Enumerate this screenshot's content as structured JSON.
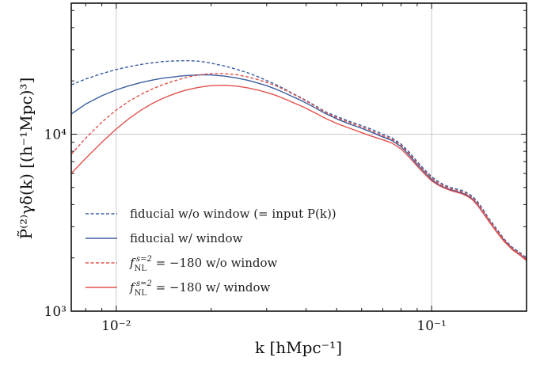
{
  "chart_data": {
    "type": "line",
    "xscale": "log",
    "yscale": "log",
    "xlim": [
      0.0072,
      0.2
    ],
    "ylim": [
      1000,
      55000
    ],
    "grid": true,
    "legend_position": "lower-left",
    "xlabel": "k [hMpc⁻¹]",
    "ylabel": "P̃⁽²⁾γδ(k) [(h⁻¹Mpc)³]",
    "x_ticks": [
      {
        "value": 0.01,
        "label": "10⁻²"
      },
      {
        "value": 0.1,
        "label": "10⁻¹"
      }
    ],
    "y_ticks": [
      {
        "value": 1000,
        "label": "10³"
      },
      {
        "value": 10000,
        "label": "10⁴"
      }
    ],
    "colors": {
      "blue": "#3b5fa0",
      "red": "#e0524d"
    },
    "series": [
      {
        "name": "fiducial w/o window (= input P(k))",
        "color": "#3b5fa0",
        "dash": true,
        "x": [
          0.0072,
          0.008,
          0.009,
          0.01,
          0.011,
          0.012,
          0.013,
          0.014,
          0.015,
          0.016,
          0.017,
          0.018,
          0.019,
          0.02,
          0.022,
          0.024,
          0.026,
          0.028,
          0.03,
          0.032,
          0.034,
          0.036,
          0.038,
          0.04,
          0.043,
          0.046,
          0.05,
          0.055,
          0.06,
          0.065,
          0.07,
          0.075,
          0.08,
          0.085,
          0.09,
          0.095,
          0.1,
          0.105,
          0.11,
          0.115,
          0.12,
          0.125,
          0.13,
          0.135,
          0.14,
          0.145,
          0.15,
          0.16,
          0.17,
          0.18,
          0.19,
          0.2
        ],
        "y": [
          19000,
          20500,
          22000,
          23200,
          24100,
          24800,
          25300,
          25700,
          25900,
          26000,
          26000,
          25900,
          25600,
          25200,
          24300,
          23300,
          22300,
          21200,
          20100,
          19100,
          18100,
          17100,
          16300,
          15500,
          14400,
          13400,
          12600,
          11800,
          11200,
          10600,
          10000,
          9500,
          8800,
          7900,
          7000,
          6300,
          5750,
          5400,
          5150,
          5000,
          4900,
          4800,
          4650,
          4450,
          4150,
          3800,
          3450,
          2950,
          2550,
          2300,
          2150,
          2000
        ]
      },
      {
        "name": "fiducial w/ window",
        "color": "#3b5fa0",
        "dash": false,
        "x": [
          0.0072,
          0.008,
          0.009,
          0.01,
          0.011,
          0.012,
          0.013,
          0.014,
          0.015,
          0.016,
          0.017,
          0.018,
          0.019,
          0.02,
          0.022,
          0.024,
          0.026,
          0.028,
          0.03,
          0.032,
          0.034,
          0.036,
          0.038,
          0.04,
          0.043,
          0.046,
          0.05,
          0.055,
          0.06,
          0.065,
          0.07,
          0.075,
          0.08,
          0.085,
          0.09,
          0.095,
          0.1,
          0.105,
          0.11,
          0.115,
          0.12,
          0.125,
          0.13,
          0.135,
          0.14,
          0.145,
          0.15,
          0.16,
          0.17,
          0.18,
          0.19,
          0.2
        ],
        "y": [
          13000,
          14800,
          16500,
          17800,
          18800,
          19600,
          20200,
          20700,
          21000,
          21300,
          21500,
          21600,
          21650,
          21600,
          21300,
          20800,
          20200,
          19500,
          18800,
          18000,
          17200,
          16400,
          15700,
          15000,
          14000,
          13100,
          12200,
          11400,
          10800,
          10200,
          9650,
          9200,
          8500,
          7600,
          6750,
          6100,
          5550,
          5200,
          5000,
          4850,
          4750,
          4650,
          4500,
          4300,
          4000,
          3650,
          3350,
          2850,
          2500,
          2250,
          2100,
          1950
        ]
      },
      {
        "name": "f_NL^{s=2} = −180 w/o window",
        "color": "#e0524d",
        "dash": true,
        "x": [
          0.0072,
          0.008,
          0.009,
          0.01,
          0.011,
          0.012,
          0.013,
          0.014,
          0.015,
          0.016,
          0.017,
          0.018,
          0.019,
          0.02,
          0.022,
          0.024,
          0.026,
          0.028,
          0.03,
          0.032,
          0.034,
          0.036,
          0.038,
          0.04,
          0.043,
          0.046,
          0.05,
          0.055,
          0.06,
          0.065,
          0.07,
          0.075,
          0.08,
          0.085,
          0.09,
          0.095,
          0.1,
          0.105,
          0.11,
          0.115,
          0.12,
          0.125,
          0.13,
          0.135,
          0.14,
          0.145,
          0.15,
          0.16,
          0.17,
          0.18,
          0.19,
          0.2
        ],
        "y": [
          7700,
          9500,
          11700,
          13700,
          15400,
          16800,
          18000,
          19000,
          19800,
          20500,
          21100,
          21500,
          21800,
          22000,
          22000,
          21700,
          21100,
          20400,
          19600,
          18800,
          17900,
          17000,
          16200,
          15400,
          14300,
          13300,
          12400,
          11600,
          11000,
          10400,
          9800,
          9350,
          8650,
          7750,
          6900,
          6200,
          5650,
          5300,
          5080,
          4920,
          4820,
          4720,
          4570,
          4370,
          4070,
          3720,
          3400,
          2900,
          2520,
          2270,
          2120,
          1970
        ]
      },
      {
        "name": "f_NL^{s=2} = −180 w/ window",
        "color": "#e0524d",
        "dash": false,
        "x": [
          0.0072,
          0.008,
          0.009,
          0.01,
          0.011,
          0.012,
          0.013,
          0.014,
          0.015,
          0.016,
          0.017,
          0.018,
          0.019,
          0.02,
          0.022,
          0.024,
          0.026,
          0.028,
          0.03,
          0.032,
          0.034,
          0.036,
          0.038,
          0.04,
          0.043,
          0.046,
          0.05,
          0.055,
          0.06,
          0.065,
          0.07,
          0.075,
          0.08,
          0.085,
          0.09,
          0.095,
          0.1,
          0.105,
          0.11,
          0.115,
          0.12,
          0.125,
          0.13,
          0.135,
          0.14,
          0.145,
          0.15,
          0.16,
          0.17,
          0.18,
          0.19,
          0.2
        ],
        "y": [
          6000,
          7300,
          9000,
          10700,
          12300,
          13700,
          14900,
          15900,
          16700,
          17400,
          17900,
          18300,
          18600,
          18800,
          18900,
          18700,
          18300,
          17800,
          17200,
          16600,
          15900,
          15200,
          14600,
          14000,
          13100,
          12300,
          11500,
          10800,
          10200,
          9700,
          9300,
          8900,
          8250,
          7400,
          6600,
          5950,
          5450,
          5150,
          4950,
          4800,
          4700,
          4600,
          4450,
          4250,
          3950,
          3620,
          3320,
          2830,
          2470,
          2230,
          2080,
          1930
        ]
      }
    ]
  }
}
